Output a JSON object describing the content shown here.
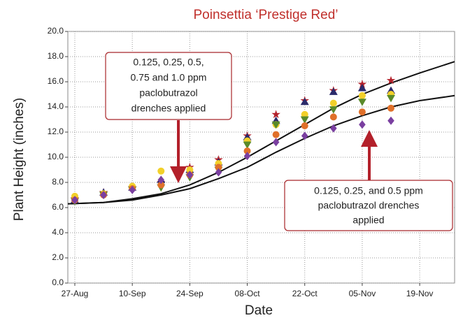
{
  "chart_data": {
    "type": "scatter",
    "title": "Poinsettia ‘Prestige Red’",
    "title_color": "#c0302c",
    "xlabel": "Date",
    "ylabel": "Plant Height (inches)",
    "grid": true,
    "xlim": [
      237.3,
      331.5
    ],
    "xticks": [
      {
        "value": 239,
        "label": "27-Aug"
      },
      {
        "value": 253,
        "label": "10-Sep"
      },
      {
        "value": 267,
        "label": "24-Sep"
      },
      {
        "value": 281,
        "label": "08-Oct"
      },
      {
        "value": 295,
        "label": "22-Oct"
      },
      {
        "value": 309,
        "label": "05-Nov"
      },
      {
        "value": 323,
        "label": "19-Nov"
      }
    ],
    "ylim": [
      0,
      20
    ],
    "yticks": [
      {
        "value": 0,
        "label": "0.0"
      },
      {
        "value": 2,
        "label": "2.0"
      },
      {
        "value": 4,
        "label": "4.0"
      },
      {
        "value": 6,
        "label": "6.0"
      },
      {
        "value": 8,
        "label": "8.0"
      },
      {
        "value": 10,
        "label": "10.0"
      },
      {
        "value": 12,
        "label": "12.0"
      },
      {
        "value": 14,
        "label": "14.0"
      },
      {
        "value": 16,
        "label": "16.0"
      },
      {
        "value": 18,
        "label": "18.0"
      },
      {
        "value": 20,
        "label": "20.0"
      }
    ],
    "x": [
      239,
      246,
      253,
      260,
      267,
      274,
      281,
      288,
      295,
      302,
      309,
      316
    ],
    "series": [
      {
        "marker": "star",
        "color": "#b3202a",
        "values": [
          6.7,
          7.2,
          7.6,
          8.0,
          9.2,
          9.8,
          11.7,
          13.4,
          14.5,
          15.3,
          15.8,
          16.1
        ]
      },
      {
        "marker": "triangle",
        "color": "#2a2a6a",
        "values": [
          6.6,
          7.2,
          7.6,
          8.2,
          9.0,
          9.6,
          11.6,
          12.9,
          14.4,
          15.2,
          15.5,
          15.3
        ]
      },
      {
        "marker": "circle",
        "color": "#f2d02a",
        "values": [
          6.9,
          7.1,
          7.7,
          8.9,
          9.0,
          9.5,
          11.3,
          12.6,
          13.4,
          14.3,
          14.9,
          15.0
        ]
      },
      {
        "marker": "triangle-down",
        "color": "#5a8a2a",
        "values": [
          6.5,
          7.0,
          7.4,
          7.6,
          8.4,
          9.0,
          11.0,
          12.6,
          13.0,
          13.8,
          14.4,
          14.7
        ]
      },
      {
        "marker": "circle",
        "color": "#e0702a",
        "values": [
          6.6,
          7.0,
          7.5,
          7.8,
          8.6,
          9.2,
          10.5,
          11.8,
          12.5,
          13.2,
          13.6,
          13.9
        ]
      },
      {
        "marker": "diamond",
        "color": "#7a3fa0",
        "values": [
          6.6,
          7.0,
          7.4,
          8.2,
          8.6,
          8.8,
          10.1,
          11.2,
          11.7,
          12.3,
          12.6,
          12.9
        ]
      }
    ],
    "lines": [
      {
        "color": "#111111",
        "x": [
          237.3,
          246,
          253,
          260,
          267,
          274,
          281,
          288,
          295,
          302,
          309,
          316,
          323,
          331.5
        ],
        "values": [
          6.3,
          6.4,
          6.7,
          7.1,
          7.8,
          8.8,
          10.0,
          11.3,
          12.6,
          13.9,
          15.0,
          15.9,
          16.7,
          17.6
        ]
      },
      {
        "color": "#111111",
        "x": [
          237.3,
          246,
          253,
          260,
          267,
          274,
          281,
          288,
          295,
          302,
          309,
          316,
          323,
          331.5
        ],
        "values": [
          6.3,
          6.4,
          6.6,
          7.0,
          7.5,
          8.3,
          9.2,
          10.4,
          11.5,
          12.5,
          13.3,
          14.0,
          14.5,
          14.9
        ]
      }
    ],
    "annotations": [
      {
        "lines": [
          "0.125,  0.25, 0.5,",
          "0.75 and 1.0 ppm",
          "paclobutrazol",
          "drenches applied"
        ]
      },
      {
        "lines": [
          "0.125,  0.25, and 0.5 ppm",
          "paclobutrazol drenches",
          "applied"
        ]
      }
    ]
  }
}
